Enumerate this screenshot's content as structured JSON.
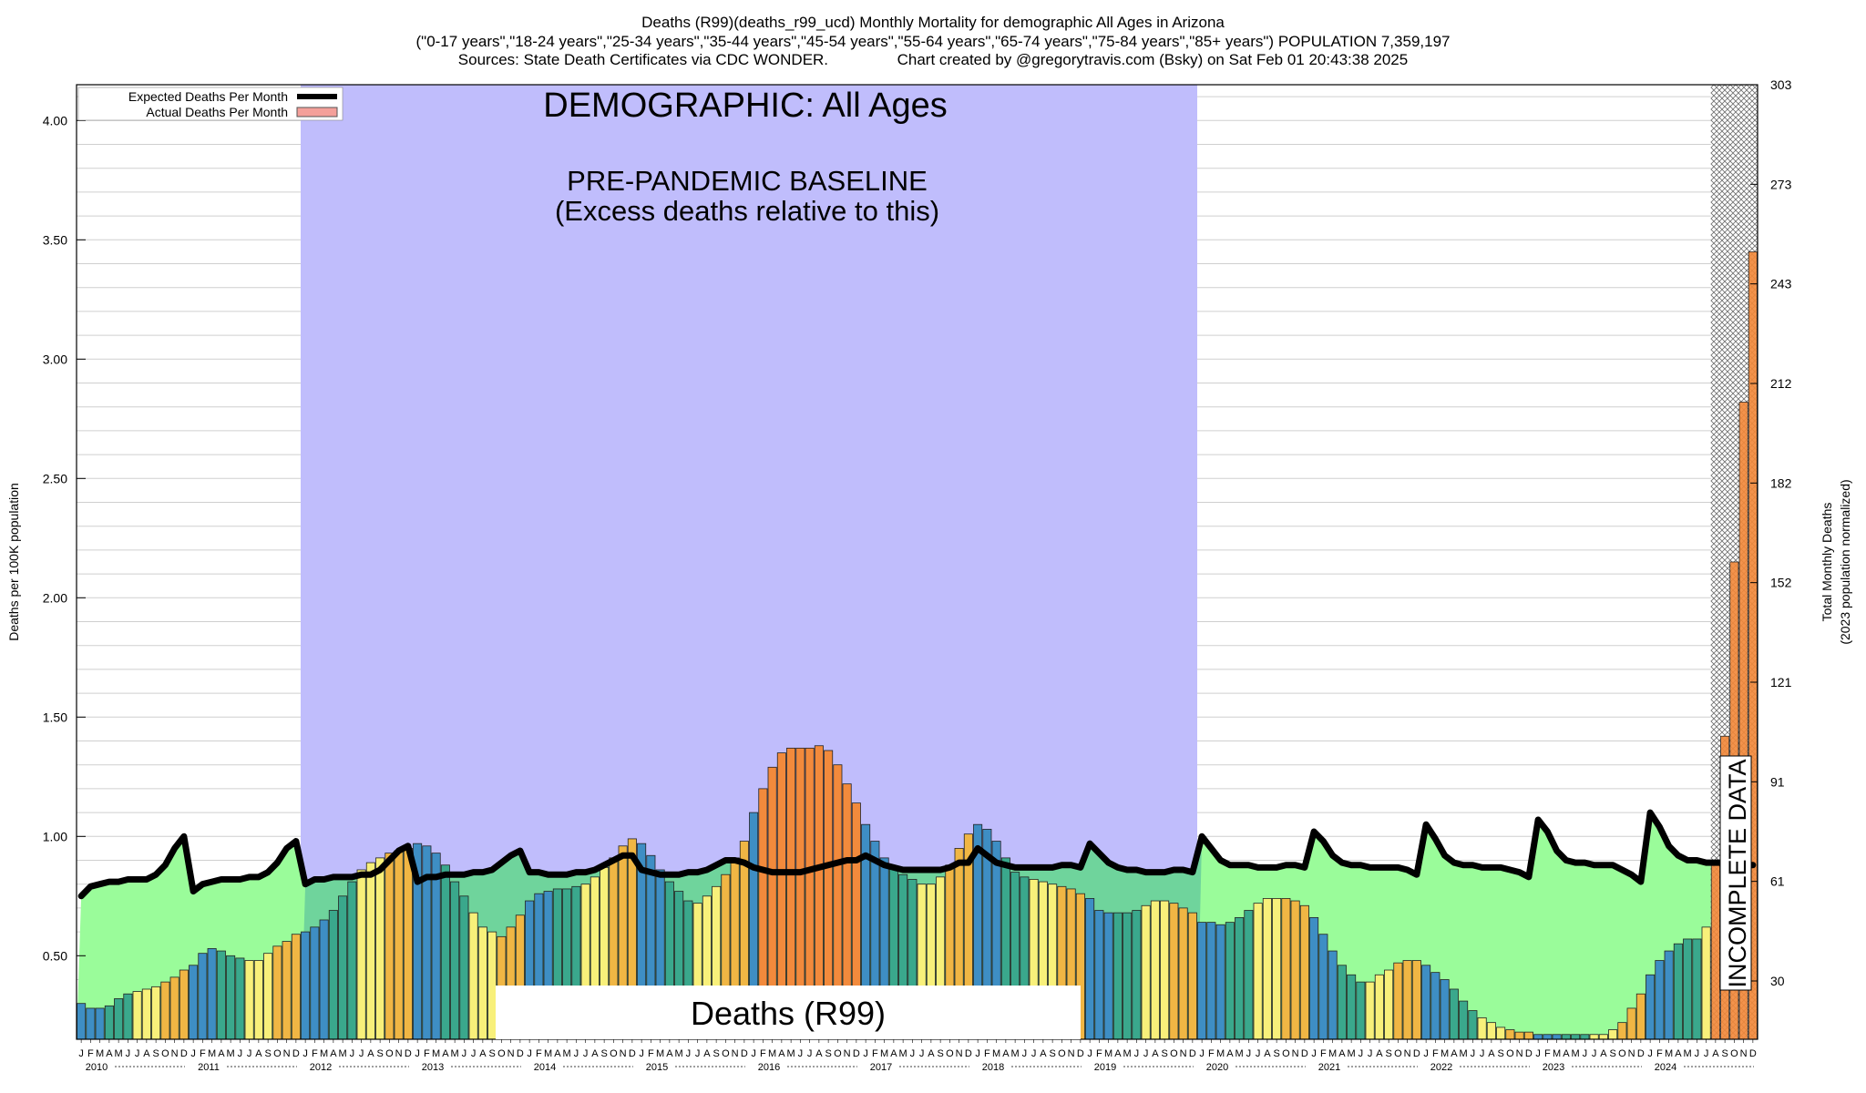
{
  "header": {
    "line1": "Deaths (R99)(deaths_r99_ucd) Monthly Mortality for demographic All Ages in Arizona",
    "line2": "(\"0-17 years\",\"18-24 years\",\"25-34 years\",\"35-44 years\",\"45-54 years\",\"55-64 years\",\"65-74 years\",\"75-84 years\",\"85+ years\") POPULATION 7,359,197",
    "line3": "Sources: State Death Certificates via CDC WONDER.                Chart created by @gregorytravis.com (Bsky) on Sat Feb 01 20:43:38 2025"
  },
  "chart_data": {
    "type": "bar",
    "demographic_title": "DEMOGRAPHIC: All Ages",
    "baseline_line1": "PRE-PANDEMIC BASELINE",
    "baseline_line2": "(Excess deaths relative to this)",
    "cause_label": "Deaths (R99)",
    "incomplete_label": "INCOMPLETE DATA",
    "ylabel_left": "Deaths per 100K population",
    "ylabel_right_line1": "Total Monthly Deaths",
    "ylabel_right_line2": "(2023 population normalized)",
    "legend": [
      {
        "label": "Expected Deaths Per Month",
        "color": "#000000"
      },
      {
        "label": "Actual Deaths Per Month",
        "color": "#f4a09a"
      }
    ],
    "ylim": [
      0.15,
      4.15
    ],
    "yticks_left": [
      "0.50",
      "1.00",
      "1.50",
      "2.00",
      "2.50",
      "3.00",
      "3.50",
      "4.00"
    ],
    "yticks_left_values": [
      0.5,
      1.0,
      1.5,
      2.0,
      2.5,
      3.0,
      3.5,
      4.0
    ],
    "yticks_right": [
      "30",
      "61",
      "91",
      "121",
      "152",
      "182",
      "212",
      "243",
      "273",
      "303"
    ],
    "month_letters": [
      "J",
      "F",
      "M",
      "A",
      "M",
      "J",
      "J",
      "A",
      "S",
      "O",
      "N",
      "D"
    ],
    "years": [
      "2010",
      "2011",
      "2012",
      "2013",
      "2014",
      "2015",
      "2016",
      "2017",
      "2018",
      "2019",
      "2020",
      "2021",
      "2022",
      "2023",
      "2024"
    ],
    "baseline_years": [
      "2012",
      "2019"
    ],
    "incomplete_from_month": "2024-08",
    "actual": [
      0.3,
      0.28,
      0.28,
      0.29,
      0.32,
      0.34,
      0.35,
      0.36,
      0.37,
      0.39,
      0.41,
      0.44,
      0.46,
      0.51,
      0.53,
      0.52,
      0.5,
      0.49,
      0.48,
      0.48,
      0.51,
      0.54,
      0.56,
      0.59,
      0.6,
      0.62,
      0.65,
      0.69,
      0.75,
      0.81,
      0.86,
      0.89,
      0.91,
      0.93,
      0.94,
      0.95,
      0.97,
      0.96,
      0.93,
      0.88,
      0.81,
      0.75,
      0.68,
      0.62,
      0.6,
      0.58,
      0.62,
      0.67,
      0.73,
      0.76,
      0.77,
      0.78,
      0.78,
      0.79,
      0.8,
      0.83,
      0.87,
      0.91,
      0.96,
      0.99,
      0.97,
      0.92,
      0.86,
      0.81,
      0.77,
      0.73,
      0.72,
      0.75,
      0.79,
      0.84,
      0.91,
      0.98,
      1.1,
      1.2,
      1.29,
      1.35,
      1.37,
      1.37,
      1.37,
      1.38,
      1.36,
      1.3,
      1.22,
      1.14,
      1.05,
      0.98,
      0.91,
      0.87,
      0.84,
      0.82,
      0.8,
      0.8,
      0.83,
      0.88,
      0.95,
      1.01,
      1.05,
      1.03,
      0.98,
      0.91,
      0.85,
      0.83,
      0.82,
      0.81,
      0.8,
      0.79,
      0.78,
      0.76,
      0.74,
      0.69,
      0.68,
      0.68,
      0.68,
      0.69,
      0.71,
      0.73,
      0.73,
      0.72,
      0.7,
      0.68,
      0.64,
      0.64,
      0.63,
      0.64,
      0.66,
      0.69,
      0.72,
      0.74,
      0.74,
      0.74,
      0.73,
      0.71,
      0.66,
      0.59,
      0.52,
      0.46,
      0.42,
      0.39,
      0.39,
      0.42,
      0.44,
      0.47,
      0.48,
      0.48,
      0.46,
      0.43,
      0.4,
      0.36,
      0.31,
      0.27,
      0.24,
      0.22,
      0.2,
      0.19,
      0.18,
      0.18,
      0.17,
      0.17,
      0.17,
      0.17,
      0.17,
      0.17,
      0.17,
      0.17,
      0.19,
      0.22,
      0.28,
      0.34,
      0.42,
      0.48,
      0.52,
      0.55,
      0.57,
      0.57,
      0.62,
      0.88,
      1.42,
      2.15,
      2.82,
      3.45
    ],
    "expected": [
      0.75,
      0.79,
      0.8,
      0.81,
      0.81,
      0.82,
      0.82,
      0.82,
      0.84,
      0.88,
      0.95,
      1.0,
      0.77,
      0.8,
      0.81,
      0.82,
      0.82,
      0.82,
      0.83,
      0.83,
      0.85,
      0.89,
      0.95,
      0.98,
      0.8,
      0.82,
      0.82,
      0.83,
      0.83,
      0.83,
      0.84,
      0.84,
      0.86,
      0.9,
      0.94,
      0.96,
      0.81,
      0.83,
      0.83,
      0.84,
      0.84,
      0.84,
      0.85,
      0.85,
      0.86,
      0.89,
      0.92,
      0.94,
      0.85,
      0.85,
      0.84,
      0.84,
      0.84,
      0.85,
      0.85,
      0.86,
      0.88,
      0.9,
      0.92,
      0.92,
      0.86,
      0.85,
      0.84,
      0.84,
      0.84,
      0.85,
      0.85,
      0.86,
      0.88,
      0.9,
      0.9,
      0.89,
      0.87,
      0.86,
      0.85,
      0.85,
      0.85,
      0.85,
      0.86,
      0.87,
      0.88,
      0.89,
      0.9,
      0.9,
      0.92,
      0.9,
      0.88,
      0.87,
      0.86,
      0.86,
      0.86,
      0.86,
      0.86,
      0.87,
      0.89,
      0.89,
      0.95,
      0.92,
      0.89,
      0.88,
      0.87,
      0.87,
      0.87,
      0.87,
      0.87,
      0.88,
      0.88,
      0.87,
      0.97,
      0.93,
      0.89,
      0.87,
      0.86,
      0.86,
      0.85,
      0.85,
      0.85,
      0.86,
      0.86,
      0.85,
      1.0,
      0.95,
      0.9,
      0.88,
      0.88,
      0.88,
      0.87,
      0.87,
      0.87,
      0.88,
      0.88,
      0.87,
      1.02,
      0.98,
      0.92,
      0.89,
      0.88,
      0.88,
      0.87,
      0.87,
      0.87,
      0.87,
      0.86,
      0.84,
      1.05,
      0.99,
      0.92,
      0.89,
      0.88,
      0.88,
      0.87,
      0.87,
      0.87,
      0.86,
      0.85,
      0.83,
      1.07,
      1.02,
      0.94,
      0.9,
      0.89,
      0.89,
      0.88,
      0.88,
      0.88,
      0.86,
      0.84,
      0.81,
      1.1,
      1.04,
      0.96,
      0.92,
      0.9,
      0.9,
      0.89,
      0.89,
      0.89,
      0.88,
      0.88,
      0.88
    ],
    "colors": {
      "baseline_band": "#c0bdfc",
      "excess_fill": "#9afc9a",
      "expected_line": "#000000",
      "bar_low": "#f8f07a",
      "bar_mid": "#f0b644",
      "bar_high": "#f28a3c",
      "bar_blue": "#3e8ec4",
      "bar_teal": "#3aa88c"
    }
  }
}
